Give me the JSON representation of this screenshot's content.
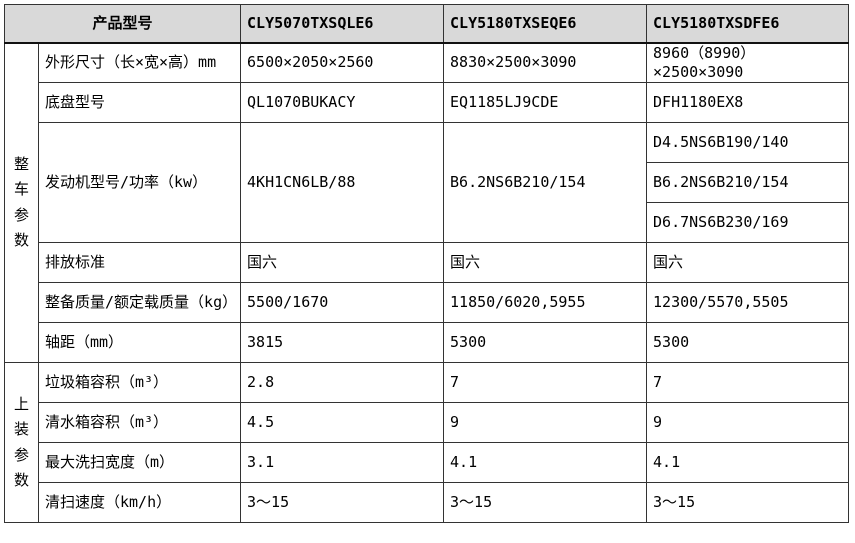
{
  "header": {
    "product_model_label": "产品型号",
    "models": [
      "CLY5070TXSQLE6",
      "CLY5180TXSEQE6",
      "CLY5180TXSDFE6"
    ]
  },
  "groups": {
    "vehicle": "整车参数",
    "body": "上装参数"
  },
  "rows": {
    "dimensions": {
      "label": "外形尺寸（长×宽×高）mm",
      "v1": "6500×2050×2560",
      "v2": "8830×2500×3090",
      "v3": "8960（8990）×2500×3090"
    },
    "chassis": {
      "label": "底盘型号",
      "v1": "QL1070BUKACY",
      "v2": "EQ1185LJ9CDE",
      "v3": "DFH1180EX8"
    },
    "engine": {
      "label": "发动机型号/功率（kw）",
      "v1": "4KH1CN6LB/88",
      "v2": "B6.2NS6B210/154",
      "v3a": "D4.5NS6B190/140",
      "v3b": "B6.2NS6B210/154",
      "v3c": "D6.7NS6B230/169"
    },
    "emission": {
      "label": "排放标准",
      "v1": "国六",
      "v2": "国六",
      "v3": "国六"
    },
    "mass": {
      "label": "整备质量/额定载质量（kg）",
      "v1": "5500/1670",
      "v2": "11850/6020,5955",
      "v3": "12300/5570,5505"
    },
    "wheelbase": {
      "label": "轴距（mm）",
      "v1": "3815",
      "v2": "5300",
      "v3": "5300"
    },
    "garbage_box": {
      "label": "垃圾箱容积（m³）",
      "v1": "2.8",
      "v2": "7",
      "v3": "7"
    },
    "water_tank": {
      "label": "清水箱容积（m³）",
      "v1": "4.5",
      "v2": "9",
      "v3": "9"
    },
    "sweep_width": {
      "label": "最大洗扫宽度（m）",
      "v1": "3.1",
      "v2": "4.1",
      "v3": "4.1"
    },
    "sweep_speed": {
      "label": "清扫速度（km/h）",
      "v1": "3～15",
      "v2": "3～15",
      "v3": "3～15"
    }
  },
  "colors": {
    "header_bg": "#d9d9d9",
    "border": "#333333",
    "text": "#000000"
  }
}
